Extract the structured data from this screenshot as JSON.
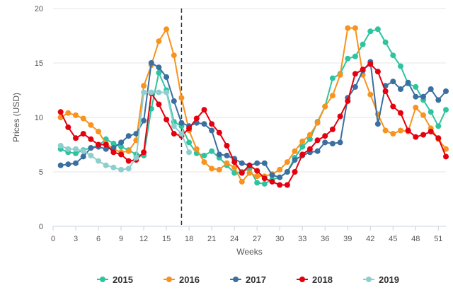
{
  "chart_data": {
    "type": "line",
    "xlabel": "Weeks",
    "ylabel": "Prices (USD)",
    "xlim": [
      0,
      52
    ],
    "ylim": [
      0,
      20
    ],
    "x_ticks": [
      0,
      3,
      6,
      9,
      12,
      15,
      18,
      21,
      24,
      27,
      30,
      33,
      36,
      39,
      42,
      45,
      48,
      51
    ],
    "y_ticks": [
      0,
      5,
      10,
      15,
      20
    ],
    "grid": "horizontal",
    "legend_position": "bottom",
    "reference_line_x": 17,
    "x": [
      1,
      2,
      3,
      4,
      5,
      6,
      7,
      8,
      9,
      10,
      11,
      12,
      13,
      14,
      15,
      16,
      17,
      18,
      19,
      20,
      21,
      22,
      23,
      24,
      25,
      26,
      27,
      28,
      29,
      30,
      31,
      32,
      33,
      34,
      35,
      36,
      37,
      38,
      39,
      40,
      41,
      42,
      43,
      44,
      45,
      46,
      47,
      48,
      49,
      50,
      51,
      52
    ],
    "series": [
      {
        "name": "2015",
        "color": "#2ec4a0",
        "values": [
          7.1,
          6.8,
          6.7,
          7.0,
          7.2,
          7.4,
          8.0,
          7.6,
          7.3,
          7.0,
          6.6,
          6.5,
          10.8,
          14.1,
          12.5,
          9.6,
          9.2,
          7.7,
          6.7,
          6.5,
          6.9,
          6.3,
          5.6,
          4.9,
          5.0,
          5.3,
          4.0,
          3.9,
          4.3,
          4.5,
          5.0,
          6.3,
          7.3,
          8.0,
          9.6,
          11.0,
          13.6,
          14.0,
          15.4,
          15.6,
          16.7,
          17.9,
          18.1,
          16.9,
          15.7,
          14.7,
          13.1,
          12.8,
          11.6,
          10.5,
          9.2,
          10.7
        ]
      },
      {
        "name": "2016",
        "color": "#f7931e",
        "values": [
          10.0,
          10.4,
          10.2,
          9.9,
          9.3,
          8.7,
          7.6,
          7.1,
          6.8,
          6.9,
          7.9,
          12.9,
          14.8,
          17.0,
          18.1,
          15.7,
          11.8,
          8.8,
          7.1,
          5.9,
          5.3,
          5.2,
          5.8,
          5.4,
          4.1,
          4.9,
          4.6,
          4.6,
          4.8,
          5.2,
          5.9,
          6.9,
          7.8,
          8.4,
          9.5,
          11.0,
          12.0,
          13.9,
          18.2,
          18.2,
          13.9,
          12.1,
          10.3,
          8.8,
          8.5,
          8.8,
          8.7,
          10.9,
          10.2,
          9.0,
          8.0,
          7.1
        ]
      },
      {
        "name": "2017",
        "color": "#3a6fa0",
        "values": [
          5.6,
          5.7,
          5.8,
          6.4,
          7.2,
          7.3,
          7.1,
          7.2,
          7.7,
          8.3,
          8.5,
          9.7,
          15.0,
          14.6,
          13.7,
          11.5,
          9.5,
          9.2,
          9.5,
          9.4,
          8.8,
          6.6,
          6.5,
          6.2,
          5.8,
          5.6,
          5.8,
          5.8,
          4.7,
          4.5,
          5.0,
          6.1,
          6.5,
          6.8,
          6.9,
          7.7,
          7.6,
          7.7,
          11.8,
          12.8,
          14.3,
          15.1,
          9.4,
          12.9,
          13.3,
          12.6,
          13.2,
          11.9,
          11.9,
          12.6,
          11.6,
          12.4
        ]
      },
      {
        "name": "2018",
        "color": "#e3000f",
        "values": [
          10.5,
          9.1,
          8.1,
          8.5,
          8.0,
          7.5,
          7.5,
          6.8,
          6.6,
          6.0,
          6.1,
          6.8,
          12.2,
          11.2,
          9.8,
          8.5,
          8.3,
          9.0,
          9.9,
          10.7,
          9.4,
          8.6,
          7.4,
          5.9,
          4.9,
          5.6,
          5.1,
          4.4,
          4.1,
          3.8,
          3.8,
          5.0,
          6.6,
          7.1,
          7.9,
          8.3,
          8.9,
          10.1,
          11.5,
          14.0,
          14.4,
          14.9,
          14.2,
          12.4,
          11.0,
          10.4,
          8.8,
          8.2,
          8.4,
          8.7,
          8.1,
          6.4
        ]
      },
      {
        "name": "2019",
        "color": "#8ecfce",
        "values": [
          7.4,
          7.1,
          7.1,
          6.9,
          6.5,
          6.0,
          5.6,
          5.4,
          5.2,
          5.3,
          6.3,
          12.3,
          12.3,
          12.3,
          12.3,
          9.2,
          8.5,
          6.8,
          null,
          null,
          null,
          null,
          null,
          null,
          null,
          null,
          null,
          null,
          null,
          null,
          null,
          null,
          null,
          null,
          null,
          null,
          null,
          null,
          null,
          null,
          null,
          null,
          null,
          null,
          null,
          null,
          null,
          null,
          null,
          null,
          null,
          null
        ]
      }
    ]
  }
}
